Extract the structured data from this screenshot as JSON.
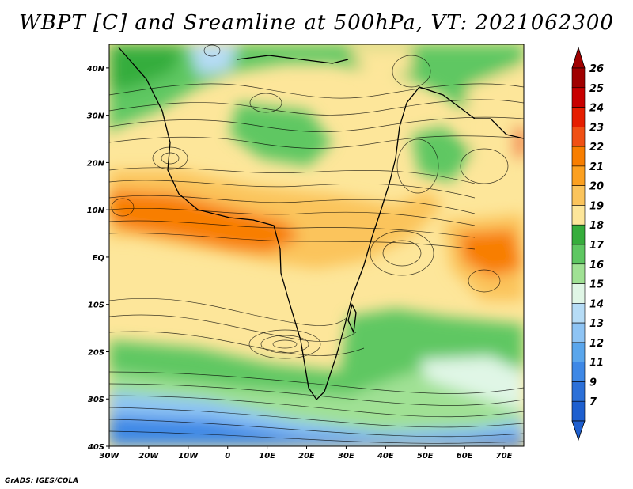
{
  "title": "WBPT [C] and Sreamline at 500hPa, VT: 2021062300",
  "credit": "GrADS: IGES/COLA",
  "map": {
    "lon_range": [
      -30,
      75
    ],
    "lat_range": [
      -40,
      45
    ],
    "lat_ticks": [
      {
        "value": 40,
        "label": "40N"
      },
      {
        "value": 30,
        "label": "30N"
      },
      {
        "value": 20,
        "label": "20N"
      },
      {
        "value": 10,
        "label": "10N"
      },
      {
        "value": 0,
        "label": "EQ"
      },
      {
        "value": -10,
        "label": "10S"
      },
      {
        "value": -20,
        "label": "20S"
      },
      {
        "value": -30,
        "label": "30S"
      },
      {
        "value": -40,
        "label": "40S"
      }
    ],
    "lon_ticks": [
      {
        "value": -30,
        "label": "30W"
      },
      {
        "value": -20,
        "label": "20W"
      },
      {
        "value": -10,
        "label": "10W"
      },
      {
        "value": 0,
        "label": "0"
      },
      {
        "value": 10,
        "label": "10E"
      },
      {
        "value": 20,
        "label": "20E"
      },
      {
        "value": 30,
        "label": "30E"
      },
      {
        "value": 40,
        "label": "40E"
      },
      {
        "value": 50,
        "label": "50E"
      },
      {
        "value": 60,
        "label": "60E"
      },
      {
        "value": 70,
        "label": "70E"
      }
    ]
  },
  "colorbar": {
    "levels": [
      {
        "label": "26",
        "color": "#a00000"
      },
      {
        "label": "25",
        "color": "#c80000"
      },
      {
        "label": "24",
        "color": "#e61e00"
      },
      {
        "label": "23",
        "color": "#f05014"
      },
      {
        "label": "22",
        "color": "#f87e00"
      },
      {
        "label": "21",
        "color": "#fca020"
      },
      {
        "label": "20",
        "color": "#fbc45c"
      },
      {
        "label": "19",
        "color": "#fde69a"
      },
      {
        "label": "18",
        "color": "#36ad3c"
      },
      {
        "label": "17",
        "color": "#5ec762"
      },
      {
        "label": "16",
        "color": "#a0e194"
      },
      {
        "label": "15",
        "color": "#e0f6e6"
      },
      {
        "label": "14",
        "color": "#b6dcf6"
      },
      {
        "label": "13",
        "color": "#8ec4f4"
      },
      {
        "label": "12",
        "color": "#5aa6ec"
      },
      {
        "label": "11",
        "color": "#3e88e6"
      },
      {
        "label": "9",
        "color": "#2c70d8"
      },
      {
        "label": "7",
        "color": "#1e5fcf"
      }
    ]
  }
}
